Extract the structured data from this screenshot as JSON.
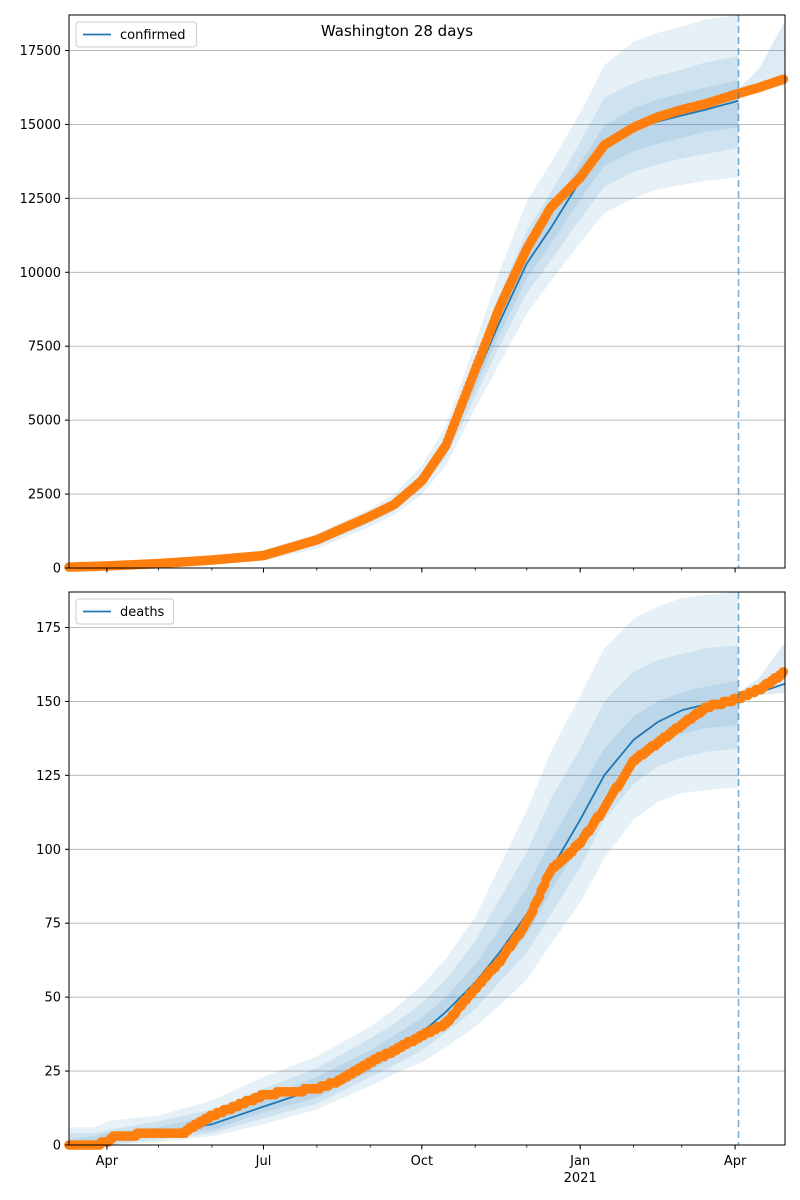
{
  "figure": {
    "title": "Washington 28 days"
  },
  "colors": {
    "model_line": "#1f77b4",
    "observed": "#ff7f0e",
    "band": "#1f77b4",
    "grid": "#b0b0b0",
    "split_line": "#1f77b4"
  },
  "chart_data": [
    {
      "type": "line",
      "legend": "confirmed",
      "legend_position": "top-left",
      "grid": "y",
      "xlim": [
        "2020-03-10",
        "2021-04-30"
      ],
      "ylim": [
        0,
        18700
      ],
      "yticks": [
        0,
        2500,
        5000,
        7500,
        10000,
        12500,
        15000,
        17500
      ],
      "xticks": [
        {
          "date": "2020-04-01",
          "label": "Apr",
          "sublabel": ""
        },
        {
          "date": "2020-07-01",
          "label": "Jul",
          "sublabel": ""
        },
        {
          "date": "2020-10-01",
          "label": "Oct",
          "sublabel": ""
        },
        {
          "date": "2021-01-01",
          "label": "Jan",
          "sublabel": "2021"
        },
        {
          "date": "2021-04-01",
          "label": "Apr",
          "sublabel": ""
        }
      ],
      "forecast_start": "2021-04-03",
      "model": {
        "x": [
          "2020-03-10",
          "2020-04-01",
          "2020-05-01",
          "2020-06-01",
          "2020-07-01",
          "2020-08-01",
          "2020-09-01",
          "2020-09-15",
          "2020-10-01",
          "2020-10-15",
          "2020-11-01",
          "2020-11-15",
          "2020-12-01",
          "2020-12-15",
          "2021-01-01",
          "2021-01-15",
          "2021-02-01",
          "2021-02-15",
          "2021-03-01",
          "2021-03-15",
          "2021-04-03"
        ],
        "y": [
          30,
          70,
          150,
          270,
          420,
          900,
          1700,
          2150,
          2950,
          4100,
          6400,
          8300,
          10300,
          11500,
          13100,
          14300,
          14850,
          15100,
          15300,
          15500,
          15800
        ]
      },
      "bands": [
        {
          "lo": [
            0,
            0,
            50,
            150,
            250,
            650,
            1400,
            1800,
            2500,
            3450,
            5400,
            6900,
            8600,
            9700,
            11000,
            12000,
            12500,
            12800,
            12950,
            13100,
            13200
          ],
          "hi": [
            100,
            150,
            260,
            400,
            600,
            1150,
            2000,
            2500,
            3450,
            4800,
            7600,
            10000,
            12400,
            13700,
            15400,
            17000,
            17800,
            18100,
            18300,
            18550,
            18700
          ]
        },
        {
          "lo": [
            5,
            20,
            90,
            200,
            320,
            760,
            1530,
            1950,
            2700,
            3750,
            5800,
            7500,
            9300,
            10400,
            11800,
            12900,
            13400,
            13650,
            13850,
            14000,
            14200
          ],
          "hi": [
            70,
            120,
            220,
            350,
            530,
            1050,
            1870,
            2350,
            3200,
            4450,
            7000,
            9200,
            11400,
            12700,
            14400,
            15900,
            16400,
            16650,
            16850,
            17100,
            17300
          ]
        },
        {
          "lo": [
            15,
            45,
            120,
            235,
            370,
            830,
            1620,
            2050,
            2830,
            3930,
            6100,
            7900,
            9800,
            10950,
            12450,
            13600,
            14100,
            14350,
            14550,
            14750,
            14900
          ],
          "hi": [
            50,
            100,
            190,
            310,
            480,
            970,
            1780,
            2250,
            3080,
            4270,
            6700,
            8700,
            10800,
            12050,
            13700,
            14950,
            15550,
            15850,
            16050,
            16250,
            16500
          ]
        }
      ],
      "forecast": {
        "x": [
          "2021-04-03",
          "2021-04-15",
          "2021-04-30"
        ],
        "y": [
          16100,
          16350,
          16600
        ],
        "lo": [
          16050,
          16200,
          16300
        ],
        "hi": [
          16200,
          16900,
          18500
        ]
      },
      "observed": {
        "x": [
          "2020-03-10",
          "2020-04-01",
          "2020-05-01",
          "2020-06-01",
          "2020-07-01",
          "2020-08-01",
          "2020-09-01",
          "2020-09-15",
          "2020-10-01",
          "2020-10-15",
          "2020-11-01",
          "2020-11-15",
          "2020-12-01",
          "2020-12-15",
          "2021-01-01",
          "2021-01-15",
          "2021-02-01",
          "2021-02-15",
          "2021-03-01",
          "2021-03-15",
          "2021-04-03",
          "2021-04-15",
          "2021-04-30"
        ],
        "y": [
          30,
          70,
          150,
          270,
          420,
          950,
          1750,
          2150,
          2950,
          4150,
          6700,
          8800,
          10800,
          12200,
          13200,
          14300,
          14900,
          15250,
          15500,
          15700,
          16050,
          16250,
          16550
        ]
      }
    },
    {
      "type": "line",
      "legend": "deaths",
      "legend_position": "top-left",
      "grid": "y",
      "xlim": [
        "2020-03-10",
        "2021-04-30"
      ],
      "ylim": [
        0,
        187
      ],
      "yticks": [
        0,
        25,
        50,
        75,
        100,
        125,
        150,
        175
      ],
      "xticks": [
        {
          "date": "2020-04-01",
          "label": "Apr",
          "sublabel": ""
        },
        {
          "date": "2020-07-01",
          "label": "Jul",
          "sublabel": ""
        },
        {
          "date": "2020-10-01",
          "label": "Oct",
          "sublabel": ""
        },
        {
          "date": "2021-01-01",
          "label": "Jan",
          "sublabel": "2021"
        },
        {
          "date": "2021-04-01",
          "label": "Apr",
          "sublabel": ""
        }
      ],
      "forecast_start": "2021-04-03",
      "model": {
        "x": [
          "2020-03-10",
          "2020-03-25",
          "2020-04-01",
          "2020-05-01",
          "2020-06-01",
          "2020-07-01",
          "2020-08-01",
          "2020-09-01",
          "2020-09-15",
          "2020-10-01",
          "2020-10-15",
          "2020-11-01",
          "2020-11-15",
          "2020-12-01",
          "2020-12-15",
          "2021-01-01",
          "2021-01-15",
          "2021-02-01",
          "2021-02-15",
          "2021-03-01",
          "2021-03-15",
          "2021-04-03"
        ],
        "y": [
          0,
          1,
          2,
          4,
          7,
          13,
          19,
          28,
          33,
          38,
          45,
          55,
          65,
          78,
          93,
          110,
          125,
          137,
          143,
          147,
          149,
          151
        ]
      },
      "bands": [
        {
          "lo": [
            0,
            0,
            0,
            1,
            3,
            7,
            12,
            20,
            24,
            28,
            33,
            40,
            47,
            56,
            68,
            82,
            97,
            110,
            116,
            119,
            120,
            121
          ],
          "hi": [
            6,
            6,
            8,
            10,
            15,
            23,
            30,
            40,
            46,
            54,
            63,
            77,
            94,
            113,
            133,
            152,
            168,
            178,
            182,
            185,
            186,
            187
          ]
        },
        {
          "lo": [
            0,
            0,
            0,
            2,
            4,
            9,
            14,
            23,
            27,
            32,
            38,
            46,
            55,
            65,
            78,
            94,
            110,
            122,
            128,
            131,
            133,
            134
          ],
          "hi": [
            4,
            4,
            5,
            8,
            12,
            19,
            26,
            36,
            41,
            48,
            56,
            69,
            83,
            99,
            117,
            134,
            150,
            160,
            164,
            166,
            168,
            169
          ]
        },
        {
          "lo": [
            0,
            0,
            1,
            3,
            5,
            11,
            16,
            25,
            30,
            35,
            42,
            51,
            60,
            71,
            86,
            102,
            118,
            130,
            136,
            139,
            141,
            142
          ],
          "hi": [
            2,
            3,
            4,
            6,
            10,
            16,
            23,
            32,
            37,
            43,
            50,
            61,
            73,
            87,
            103,
            120,
            134,
            145,
            150,
            153,
            155,
            157
          ]
        }
      ],
      "forecast": {
        "x": [
          "2021-04-03",
          "2021-04-15",
          "2021-04-30"
        ],
        "y": [
          152,
          153,
          156
        ],
        "lo": [
          151,
          152,
          153
        ],
        "hi": [
          153,
          158,
          170
        ]
      },
      "observed": {
        "x": [
          "2020-03-10",
          "2020-03-25",
          "2020-04-01",
          "2020-04-05",
          "2020-05-01",
          "2020-05-15",
          "2020-06-01",
          "2020-06-15",
          "2020-07-01",
          "2020-08-01",
          "2020-08-15",
          "2020-09-01",
          "2020-09-15",
          "2020-10-01",
          "2020-10-15",
          "2020-11-01",
          "2020-11-15",
          "2020-12-01",
          "2020-12-15",
          "2021-01-01",
          "2021-01-15",
          "2021-02-01",
          "2021-02-15",
          "2021-03-01",
          "2021-03-15",
          "2021-04-03",
          "2021-04-15",
          "2021-04-30"
        ],
        "y": [
          0,
          0,
          1,
          3,
          4,
          4,
          10,
          13,
          17,
          19,
          22,
          28,
          32,
          37,
          41,
          53,
          62,
          75,
          93,
          102,
          114,
          130,
          136,
          142,
          148,
          151,
          154,
          160
        ]
      }
    }
  ]
}
